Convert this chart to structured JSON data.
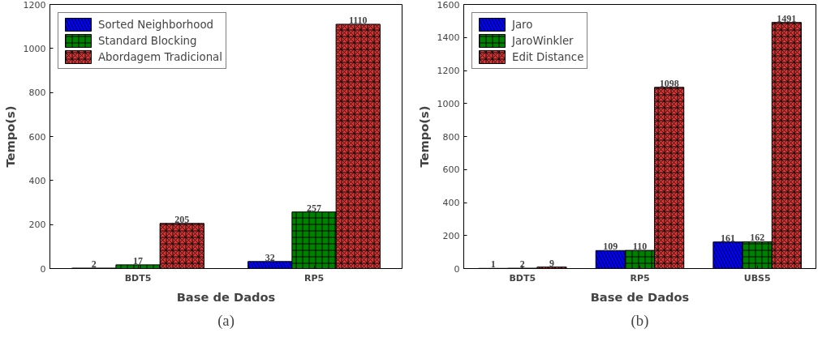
{
  "chart_data": [
    {
      "type": "bar",
      "xlabel": "Base de Dados",
      "ylabel": "Tempo(s)",
      "categories": [
        "BDT5",
        "RP5"
      ],
      "series": [
        {
          "name": "Sorted Neighborhood",
          "color": "#0000ff",
          "values": [
            2,
            32
          ]
        },
        {
          "name": "Standard Blocking",
          "color": "#008000",
          "values": [
            17,
            257
          ]
        },
        {
          "name": "Abordagem Tradicional",
          "color": "#dd3333",
          "values": [
            205,
            1110
          ]
        }
      ],
      "ylim": [
        0,
        1200
      ],
      "yticks": [
        0,
        200,
        400,
        600,
        800,
        1000,
        1200
      ],
      "data_labels": true,
      "legend": "top left",
      "grid": false,
      "annotations": [
        "(a)"
      ]
    },
    {
      "type": "bar",
      "xlabel": "Base de Dados",
      "ylabel": "Tempo(s)",
      "categories": [
        "BDT5",
        "RP5",
        "UBS5"
      ],
      "series": [
        {
          "name": "Jaro",
          "color": "#0000ff",
          "values": [
            1,
            109,
            161
          ]
        },
        {
          "name": "JaroWinkler",
          "color": "#008000",
          "values": [
            2,
            110,
            162
          ]
        },
        {
          "name": "Edit Distance",
          "color": "#dd3333",
          "values": [
            9,
            1098,
            1491
          ]
        }
      ],
      "ylim": [
        0,
        1600
      ],
      "yticks": [
        0,
        200,
        400,
        600,
        800,
        1000,
        1200,
        1400,
        1600
      ],
      "data_labels": true,
      "legend": "top left",
      "grid": false,
      "annotations": [
        "(b)"
      ]
    }
  ]
}
